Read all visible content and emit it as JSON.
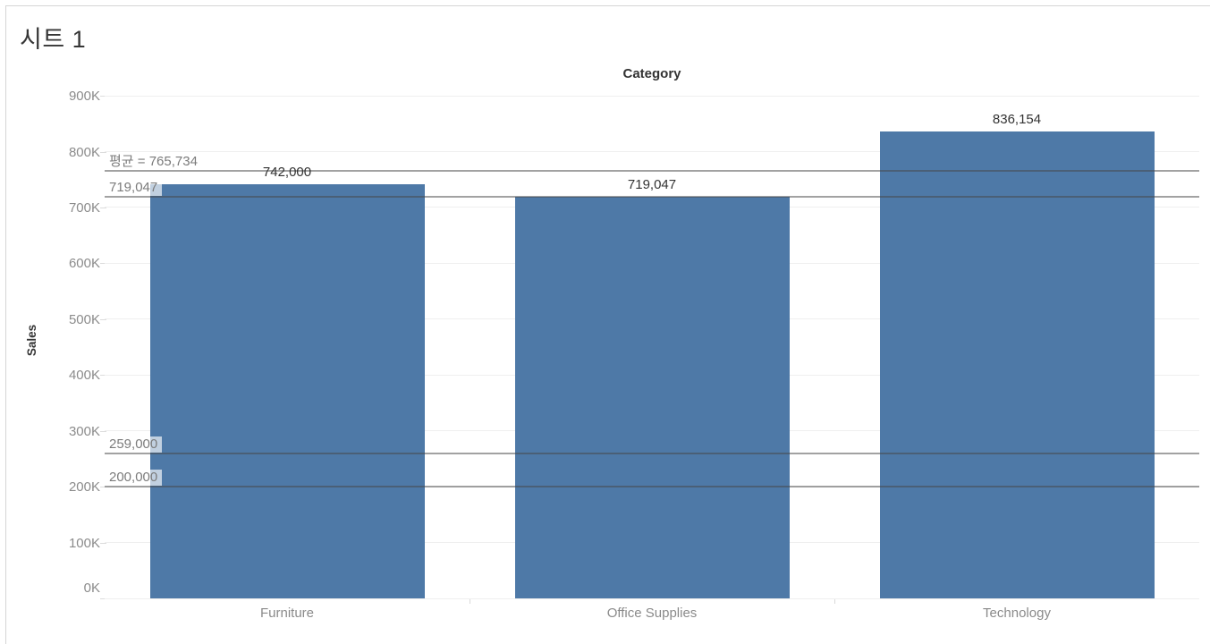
{
  "sheet": {
    "title": "시트 1"
  },
  "chart_data": {
    "type": "bar",
    "title": "Category",
    "x_axis_title": "Category",
    "y_axis_title": "Sales",
    "categories": [
      "Furniture",
      "Office Supplies",
      "Technology"
    ],
    "series": [
      {
        "name": "Sales",
        "values": [
          742000,
          719047,
          836154
        ]
      }
    ],
    "value_labels": [
      "742,000",
      "719,047",
      "836,154"
    ],
    "y_ticks": [
      {
        "value": 0,
        "label": "0K"
      },
      {
        "value": 100000,
        "label": "100K"
      },
      {
        "value": 200000,
        "label": "200K"
      },
      {
        "value": 300000,
        "label": "300K"
      },
      {
        "value": 400000,
        "label": "400K"
      },
      {
        "value": 500000,
        "label": "500K"
      },
      {
        "value": 600000,
        "label": "600K"
      },
      {
        "value": 700000,
        "label": "700K"
      },
      {
        "value": 800000,
        "label": "800K"
      },
      {
        "value": 900000,
        "label": "900K"
      }
    ],
    "ylim": [
      0,
      929000
    ],
    "grid": "horizontal",
    "legend": "none",
    "reference_lines": [
      {
        "value": 765734,
        "label": "평균 = 765,734"
      },
      {
        "value": 719047,
        "label": "719,047"
      },
      {
        "value": 259000,
        "label": "259,000"
      },
      {
        "value": 200000,
        "label": "200,000"
      }
    ]
  },
  "colors": {
    "bar": "#4e79a7",
    "gridline": "#efefef",
    "axis_line": "#d9d9d9",
    "tick_label": "#8b8b8b",
    "bar_label": "#333333",
    "ref_label": "#7b7b7b",
    "ref_line": "rgba(70,70,70,0.5)",
    "title_text": "#363636"
  }
}
